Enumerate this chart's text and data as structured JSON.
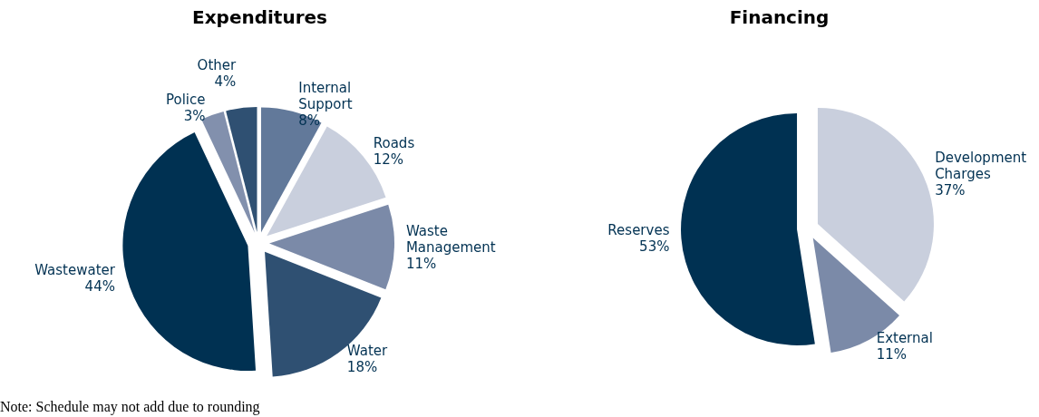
{
  "chart_data": [
    {
      "type": "pie",
      "title": "Expenditures",
      "categories": [
        "Internal Support",
        "Roads",
        "Waste Management",
        "Water",
        "Wastewater",
        "Police",
        "Other"
      ],
      "values": [
        8,
        12,
        11,
        18,
        44,
        3,
        4
      ],
      "value_labels": [
        "8%",
        "12%",
        "11%",
        "18%",
        "44%",
        "3%",
        "4%"
      ],
      "colors": [
        "#62799a",
        "#c9cfdd",
        "#7b8aa8",
        "#2f5072",
        "#003152",
        "#8290ad",
        "#2f5072"
      ],
      "legend": false,
      "annotations": [
        "Note: Schedule may not add due to rounding"
      ]
    },
    {
      "type": "pie",
      "title": "Financing",
      "categories": [
        "Development Charges",
        "External",
        "Reserves"
      ],
      "values": [
        37,
        11,
        53
      ],
      "value_labels": [
        "37%",
        "11%",
        "53%"
      ],
      "colors": [
        "#c9cfdd",
        "#7b8aa8",
        "#003152"
      ],
      "legend": false
    }
  ]
}
